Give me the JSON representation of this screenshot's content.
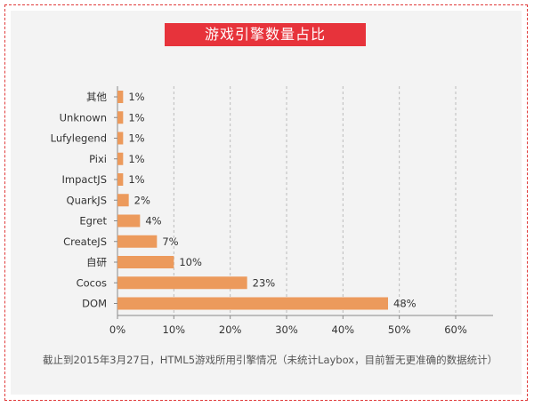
{
  "title": "游戏引擎数量占比",
  "note": "截止到2015年3月27日，HTML5游戏所用引擎情况（未统计Laybox，目前暂无更准确的数据统计）",
  "colors": {
    "bar": "#ec9a5c",
    "title_bg": "#e7333b",
    "frame": "#e03a3a"
  },
  "chart_data": {
    "type": "bar",
    "orientation": "horizontal",
    "title": "游戏引擎数量占比",
    "categories": [
      "其他",
      "Unknown",
      "Lufylegend",
      "Pixi",
      "ImpactJS",
      "QuarkJS",
      "Egret",
      "CreateJS",
      "自研",
      "Cocos",
      "DOM"
    ],
    "values": [
      1,
      1,
      1,
      1,
      1,
      2,
      4,
      7,
      10,
      23,
      48
    ],
    "value_labels": [
      "1%",
      "1%",
      "1%",
      "1%",
      "1%",
      "2%",
      "4%",
      "7%",
      "10%",
      "23%",
      "48%"
    ],
    "x_ticks": [
      "0%",
      "10%",
      "20%",
      "30%",
      "40%",
      "50%",
      "60%"
    ],
    "xlim": [
      0,
      60
    ],
    "grid": "vertical dashed",
    "legend": "none"
  }
}
